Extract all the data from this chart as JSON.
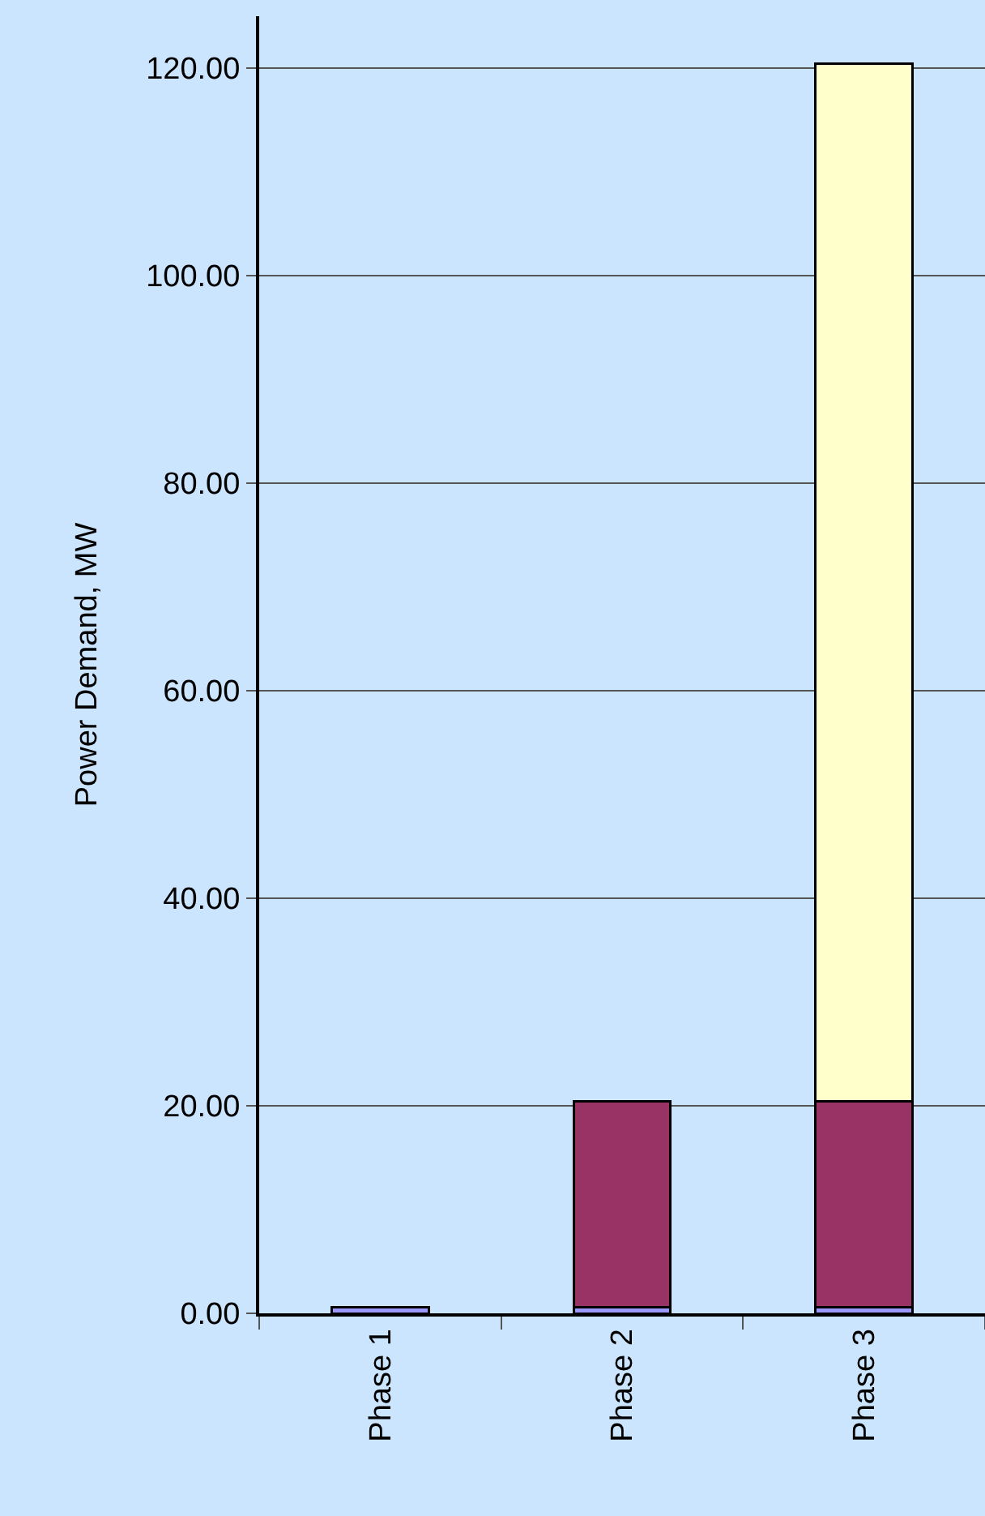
{
  "chart_data": {
    "type": "bar",
    "stacked": true,
    "ylabel": "Power Demand, MW",
    "categories": [
      "Phase 1",
      "Phase 2",
      "Phase 3"
    ],
    "series": [
      {
        "color": "#9999ff",
        "values": [
          0.6,
          0.6,
          0.6
        ]
      },
      {
        "color": "#993366",
        "values": [
          null,
          19.8,
          19.8
        ]
      },
      {
        "color": "#ffffcc",
        "values": [
          null,
          null,
          100
        ]
      }
    ],
    "ylim": [
      0,
      125
    ],
    "yticks": [
      {
        "value": 0,
        "label": "0.00"
      },
      {
        "value": 20,
        "label": "20.00"
      },
      {
        "value": 40,
        "label": "40.00"
      },
      {
        "value": 60,
        "label": "60.00"
      },
      {
        "value": 80,
        "label": "80.00"
      },
      {
        "value": 100,
        "label": "100.00"
      },
      {
        "value": 120,
        "label": "120.00"
      }
    ],
    "grid": "y"
  }
}
